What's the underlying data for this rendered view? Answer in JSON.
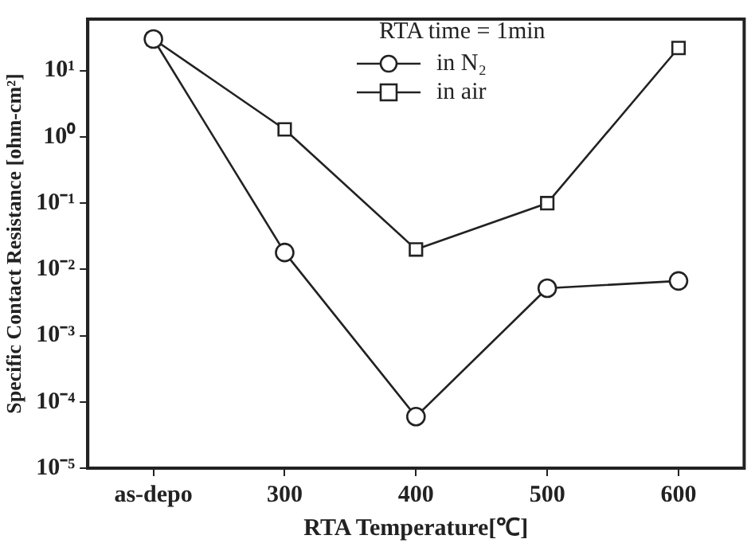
{
  "chart_data": {
    "type": "line",
    "xlabel": "RTA Temperature[℃]",
    "ylabel": "Specific Contact Resistance [ohm-cm²]",
    "legend_title": "RTA time = 1min",
    "legend": "top",
    "log": "y",
    "grid": false,
    "line_style": "solid",
    "categories": [
      "as-depo",
      "300",
      "400",
      "500",
      "600"
    ],
    "ylim": [
      1e-05,
      60
    ],
    "yticks": [
      {
        "value": 1e-05,
        "label": "10⁻⁵"
      },
      {
        "value": 0.0001,
        "label": "10⁻⁴"
      },
      {
        "value": 0.001,
        "label": "10⁻³"
      },
      {
        "value": 0.01,
        "label": "10⁻²"
      },
      {
        "value": 0.1,
        "label": "10⁻¹"
      },
      {
        "value": 1,
        "label": "10⁰"
      },
      {
        "value": 10,
        "label": "10¹"
      }
    ],
    "series": [
      {
        "name": "in N₂",
        "color": "#222222",
        "marker": "circle",
        "values": [
          30,
          0.018,
          6e-05,
          0.0052,
          0.0067
        ]
      },
      {
        "name": "in air",
        "color": "#222222",
        "marker": "square",
        "values": [
          30,
          1.3,
          0.02,
          0.1,
          22
        ]
      }
    ]
  }
}
